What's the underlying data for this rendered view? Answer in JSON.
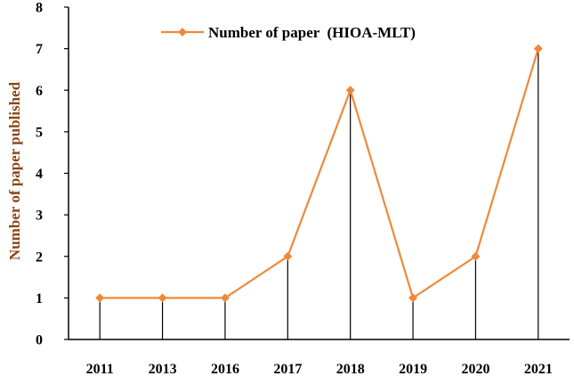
{
  "chart_data": {
    "type": "line",
    "categories": [
      "2011",
      "2013",
      "2016",
      "2017",
      "2018",
      "2019",
      "2020",
      "2021"
    ],
    "series": [
      {
        "name": "Number of paper  (HIOA-MLT)",
        "values": [
          1,
          1,
          1,
          2,
          6,
          1,
          2,
          7
        ]
      }
    ],
    "xlabel": "",
    "ylabel": "Number of paper published",
    "ylim": [
      0,
      8
    ],
    "yticks": [
      "0",
      "1",
      "2",
      "3",
      "4",
      "5",
      "6",
      "7",
      "8"
    ],
    "grid": false,
    "drop_lines": true,
    "legend_position": "top-center",
    "colors": {
      "series": "#F0883A",
      "ylabel": "#8B4513",
      "axis": "#000000",
      "drop_line": "#000000"
    }
  }
}
